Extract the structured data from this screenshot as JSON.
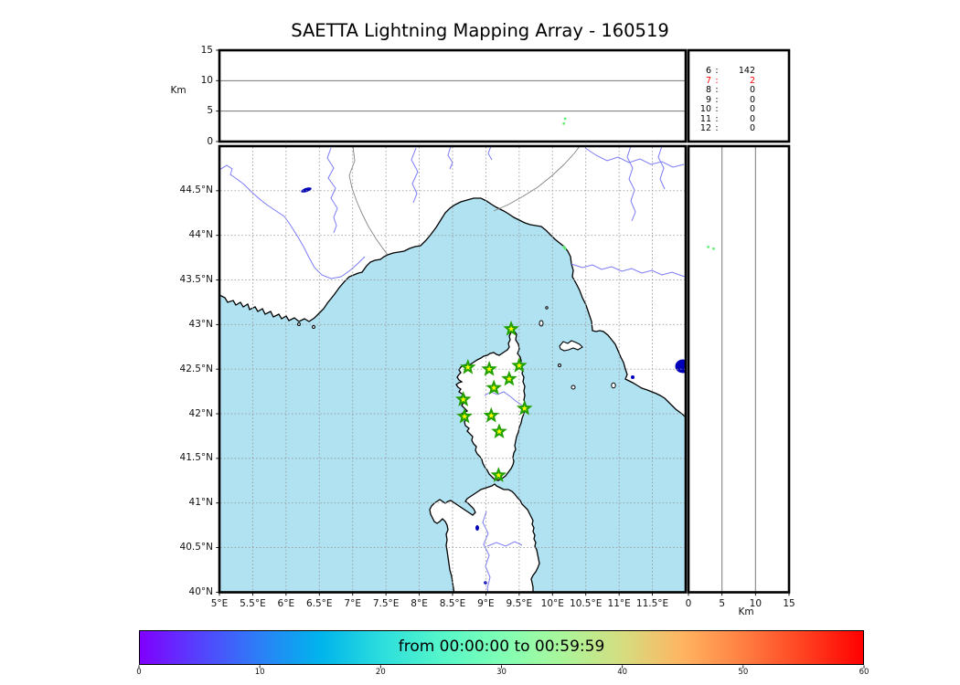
{
  "title": "SAETTA Lightning Mapping Array - 160519",
  "ui": {
    "lon_labels": [
      "5°E",
      "5.5°E",
      "6°E",
      "6.5°E",
      "7°E",
      "7.5°E",
      "8°E",
      "8.5°E",
      "9°E",
      "9.5°E",
      "10°E",
      "10.5°E",
      "11°E",
      "11.5°E"
    ],
    "lat_labels": [
      "44.5°N",
      "44°N",
      "43.5°N",
      "43°N",
      "42.5°N",
      "42°N",
      "41.5°N",
      "41°N",
      "40.5°N",
      "40°N"
    ],
    "alt_ticks_top": [
      "15",
      "10",
      "5",
      "0"
    ],
    "alt_ticks_right": [
      "0",
      "5",
      "10",
      "15"
    ],
    "km_label_top": "Km",
    "km_label_right": "Km",
    "colorbar_ticks": [
      "0",
      "10",
      "20",
      "30",
      "40",
      "50",
      "60"
    ]
  },
  "colors": {
    "sea": "#B0E2F2",
    "land": "#FFFFFF",
    "coast": "#000000",
    "river": "#7B7BF5",
    "border_gray": "#848484",
    "grid": "#999999",
    "panel_grid": "#777777",
    "star_fill": "#FFFF00",
    "star_edge": "#22A000",
    "source_dot": "#55EE66",
    "highlight_red": "#FF0000",
    "lake": "#0000B8",
    "rainbow_stops": [
      "#8000FF",
      "#5542FD",
      "#2B80F7",
      "#00B4EC",
      "#2BDDDD",
      "#55F6CA",
      "#80FFB5",
      "#AAF69B",
      "#D5DD80",
      "#FFB461",
      "#FF8042",
      "#FF4221",
      "#FF0000"
    ]
  },
  "chart_data": {
    "type": "map",
    "subtype": "lightning-mapping-array-composite",
    "title": "SAETTA Lightning Mapping Array - 160519",
    "date_code": "160519",
    "time_window": "from 00:00:00 to 00:59:59",
    "map_extent": {
      "lon_min": 5,
      "lon_max": 12,
      "lat_min": 40,
      "lat_max": 45,
      "grid_step_deg": 0.5
    },
    "altitude_axis": {
      "label": "Km",
      "min": 0,
      "max": 15,
      "ticks": [
        0,
        5,
        10,
        15
      ],
      "gridlines_km": [
        5,
        10
      ]
    },
    "stations_lon_lat": [
      [
        9.38,
        42.95
      ],
      [
        9.5,
        42.54
      ],
      [
        8.73,
        42.52
      ],
      [
        9.05,
        42.5
      ],
      [
        9.35,
        42.39
      ],
      [
        9.12,
        42.29
      ],
      [
        8.66,
        42.16
      ],
      [
        9.58,
        42.06
      ],
      [
        8.68,
        41.97
      ],
      [
        9.08,
        41.98
      ],
      [
        9.2,
        41.8
      ],
      [
        9.19,
        41.31
      ]
    ],
    "vhf_sources": [
      {
        "lon": 10.17,
        "lat": 43.87,
        "alt_km": 2.95
      },
      {
        "lon": 10.19,
        "lat": 43.85,
        "alt_km": 3.75
      }
    ],
    "sources_per_station_count": [
      {
        "stations": "6",
        "count": "142",
        "highlighted": false
      },
      {
        "stations": "7",
        "count": "2",
        "highlighted": true
      },
      {
        "stations": "8",
        "count": "0",
        "highlighted": false
      },
      {
        "stations": "9",
        "count": "0",
        "highlighted": false
      },
      {
        "stations": "10",
        "count": "0",
        "highlighted": false
      },
      {
        "stations": "11",
        "count": "0",
        "highlighted": false
      },
      {
        "stations": "12",
        "count": "0",
        "highlighted": false
      }
    ],
    "colorbar": {
      "min": 0,
      "max": 60,
      "ticks": [
        0,
        10,
        20,
        30,
        40,
        50,
        60
      ],
      "colormap": "rainbow",
      "label": "from 00:00:00 to 00:59:59"
    }
  }
}
